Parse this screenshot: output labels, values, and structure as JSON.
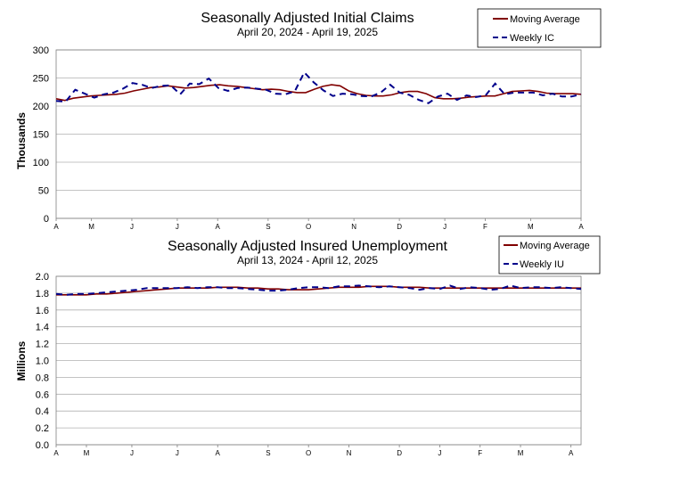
{
  "chart_data": [
    {
      "type": "line",
      "title": "Seasonally Adjusted Initial Claims",
      "subtitle": "April 20, 2024 - April 19, 2025",
      "ylabel": "Thousands",
      "ylim": [
        0,
        300
      ],
      "yticks": [
        "0",
        "50",
        "100",
        "150",
        "200",
        "250",
        "300"
      ],
      "month_labels": [
        "A",
        "M",
        "J",
        "J",
        "A",
        "S",
        "O",
        "N",
        "D",
        "J",
        "F",
        "M",
        "A"
      ],
      "month_weeks": [
        0,
        3.5,
        7.5,
        12,
        16,
        21,
        25,
        29.5,
        34,
        38.5,
        42.5,
        47,
        52
      ],
      "legend": {
        "moving_average": "Moving Average",
        "weekly": "Weekly IC"
      },
      "colors": {
        "moving_average": "#800000",
        "weekly": "#00008B"
      },
      "grid": true,
      "series": [
        {
          "name": "Moving Average",
          "values": [
            213,
            210,
            214,
            216,
            218,
            219,
            220,
            221,
            223,
            227,
            230,
            233,
            234,
            236,
            234,
            232,
            233,
            235,
            237,
            238,
            236,
            235,
            233,
            231,
            229,
            230,
            229,
            226,
            224,
            224,
            230,
            235,
            238,
            236,
            227,
            222,
            219,
            218,
            218,
            220,
            224,
            226,
            226,
            222,
            215,
            213,
            213,
            214,
            216,
            217,
            218,
            218,
            222,
            226,
            227,
            228,
            226,
            223,
            222,
            222,
            222,
            221
          ]
        },
        {
          "name": "Weekly IC",
          "values": [
            209,
            208,
            229,
            222,
            215,
            221,
            224,
            231,
            241,
            238,
            232,
            236,
            237,
            221,
            240,
            239,
            249,
            232,
            227,
            232,
            233,
            231,
            229,
            222,
            221,
            226,
            260,
            242,
            228,
            218,
            222,
            221,
            218,
            217,
            224,
            238,
            224,
            220,
            211,
            205,
            217,
            222,
            211,
            219,
            216,
            219,
            240,
            221,
            224,
            224,
            224,
            219,
            222,
            217,
            217,
            221
          ]
        }
      ]
    },
    {
      "type": "line",
      "title": "Seasonally Adjusted Insured Unemployment",
      "subtitle": "April 13, 2024 - April 12, 2025",
      "ylabel": "Millions",
      "ylim": [
        0,
        2.0
      ],
      "yticks": [
        "0.0",
        "0.2",
        "0.4",
        "0.6",
        "0.8",
        "1.0",
        "1.2",
        "1.4",
        "1.6",
        "1.8",
        "2.0"
      ],
      "month_labels": [
        "A",
        "M",
        "J",
        "J",
        "A",
        "S",
        "O",
        "N",
        "D",
        "J",
        "F",
        "M",
        "A"
      ],
      "month_weeks": [
        0,
        3,
        7.5,
        12,
        16,
        21,
        25,
        29,
        34,
        38,
        42,
        46,
        51
      ],
      "legend": {
        "moving_average": "Moving Average",
        "weekly": "Weekly IU"
      },
      "colors": {
        "moving_average": "#800000",
        "weekly": "#00008B"
      },
      "grid": true,
      "series": [
        {
          "name": "Moving Average",
          "values": [
            1.78,
            1.78,
            1.78,
            1.78,
            1.79,
            1.79,
            1.8,
            1.81,
            1.82,
            1.83,
            1.84,
            1.85,
            1.86,
            1.86,
            1.86,
            1.86,
            1.87,
            1.87,
            1.87,
            1.86,
            1.86,
            1.85,
            1.85,
            1.84,
            1.84,
            1.84,
            1.85,
            1.86,
            1.87,
            1.87,
            1.87,
            1.88,
            1.88,
            1.88,
            1.87,
            1.87,
            1.87,
            1.86,
            1.86,
            1.86,
            1.86,
            1.86,
            1.86,
            1.86,
            1.86,
            1.86,
            1.86,
            1.86,
            1.86,
            1.86,
            1.86,
            1.86,
            1.86
          ]
        },
        {
          "name": "Weekly IU",
          "values": [
            1.79,
            1.78,
            1.79,
            1.79,
            1.8,
            1.81,
            1.82,
            1.83,
            1.84,
            1.86,
            1.86,
            1.86,
            1.86,
            1.87,
            1.86,
            1.87,
            1.87,
            1.86,
            1.86,
            1.85,
            1.84,
            1.83,
            1.83,
            1.84,
            1.86,
            1.87,
            1.87,
            1.86,
            1.88,
            1.88,
            1.89,
            1.88,
            1.87,
            1.88,
            1.87,
            1.86,
            1.84,
            1.86,
            1.85,
            1.89,
            1.85,
            1.87,
            1.86,
            1.84,
            1.85,
            1.89,
            1.86,
            1.87,
            1.87,
            1.86,
            1.87,
            1.86,
            1.85
          ]
        }
      ]
    }
  ]
}
